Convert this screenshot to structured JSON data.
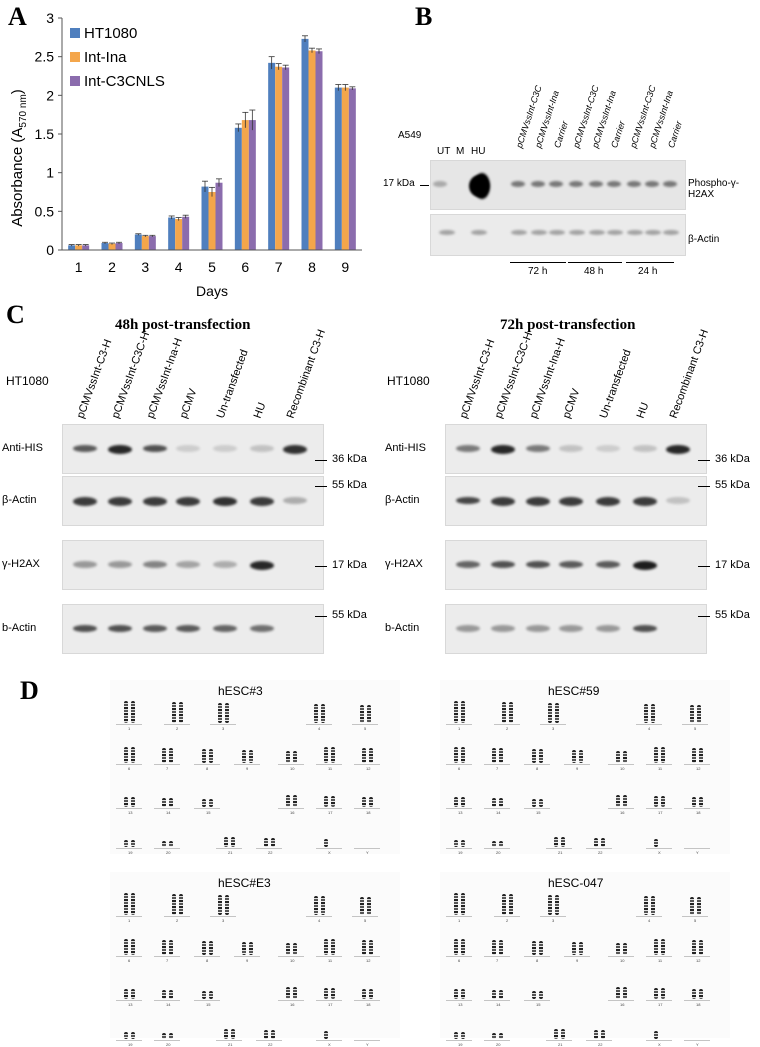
{
  "panels": {
    "a": "A",
    "b": "B",
    "c": "C",
    "d": "D"
  },
  "chart_data": {
    "type": "bar",
    "categories": [
      "1",
      "2",
      "3",
      "4",
      "5",
      "6",
      "7",
      "8",
      "9"
    ],
    "series": [
      {
        "name": "HT1080",
        "color": "#4f7fbe",
        "values": [
          0.06,
          0.09,
          0.2,
          0.42,
          0.82,
          1.58,
          2.42,
          2.73,
          2.1
        ],
        "errors": [
          0.01,
          0.01,
          0.01,
          0.02,
          0.07,
          0.05,
          0.08,
          0.04,
          0.04
        ]
      },
      {
        "name": "Int-Ina",
        "color": "#f4a64b",
        "values": [
          0.06,
          0.08,
          0.18,
          0.4,
          0.75,
          1.68,
          2.37,
          2.58,
          2.1
        ],
        "errors": [
          0.01,
          0.01,
          0.01,
          0.02,
          0.06,
          0.1,
          0.04,
          0.03,
          0.04
        ]
      },
      {
        "name": "Int-C3CNLS",
        "color": "#8b6cad",
        "values": [
          0.06,
          0.09,
          0.18,
          0.43,
          0.87,
          1.68,
          2.36,
          2.57,
          2.09
        ],
        "errors": [
          0.01,
          0.01,
          0.01,
          0.02,
          0.05,
          0.13,
          0.03,
          0.03,
          0.02
        ]
      }
    ],
    "xlabel": "Days",
    "ylabel": "Absorbance (A",
    "ylabel_sub": "570 nm",
    "ylabel_end": ")",
    "ylim": [
      0,
      3
    ],
    "yticks": [
      "0",
      "0.5",
      "1",
      "1.5",
      "2",
      "2.5",
      "3"
    ],
    "legend": "top-left",
    "grid": false
  },
  "blot_b": {
    "cell": "A549",
    "lanes": [
      "UT",
      "M",
      "HU"
    ],
    "sample_lanes": [
      "pCMVssInt-C3C",
      "pCMVssInt-Ina",
      "Carrier",
      "pCMVssInt-C3C",
      "pCMVssInt-Ina",
      "Carrier",
      "pCMVssInt-C3C",
      "pCMVssInt-Ina",
      "Carrier"
    ],
    "marker": "17 kDa",
    "row1_label": "Phospho-γ-H2AX",
    "row2_label": "β-Actin",
    "times": [
      "72 h",
      "48 h",
      "24 h"
    ]
  },
  "blot_c": {
    "left_title": "48h post-transfection",
    "right_title": "72h post-transfection",
    "cell": "HT1080",
    "lanes": [
      "pCMVssInt-C3-H",
      "pCMVssInt-C3C-H",
      "pCMVssInt-Ina-H",
      "pCMV",
      "Un-transfected",
      "HU"
    ],
    "last_lane_l1": "Recombinant",
    "last_lane_l2": "C3-H",
    "rows": [
      "Anti-HIS",
      "β-Actin",
      "γ-H2AX",
      "b-Actin"
    ],
    "markers": [
      "36 kDa",
      "55 kDa",
      "17 kDa",
      "55 kDa"
    ]
  },
  "karyotypes": {
    "titles": [
      "hESC#3",
      "hESC#59",
      "hESC#E3",
      "hESC-047"
    ],
    "numbers": [
      "1",
      "2",
      "3",
      "4",
      "5",
      "6",
      "7",
      "8",
      "9",
      "10",
      "11",
      "12",
      "13",
      "14",
      "15",
      "16",
      "17",
      "18",
      "19",
      "20",
      "21",
      "22",
      "X",
      "Y"
    ]
  }
}
